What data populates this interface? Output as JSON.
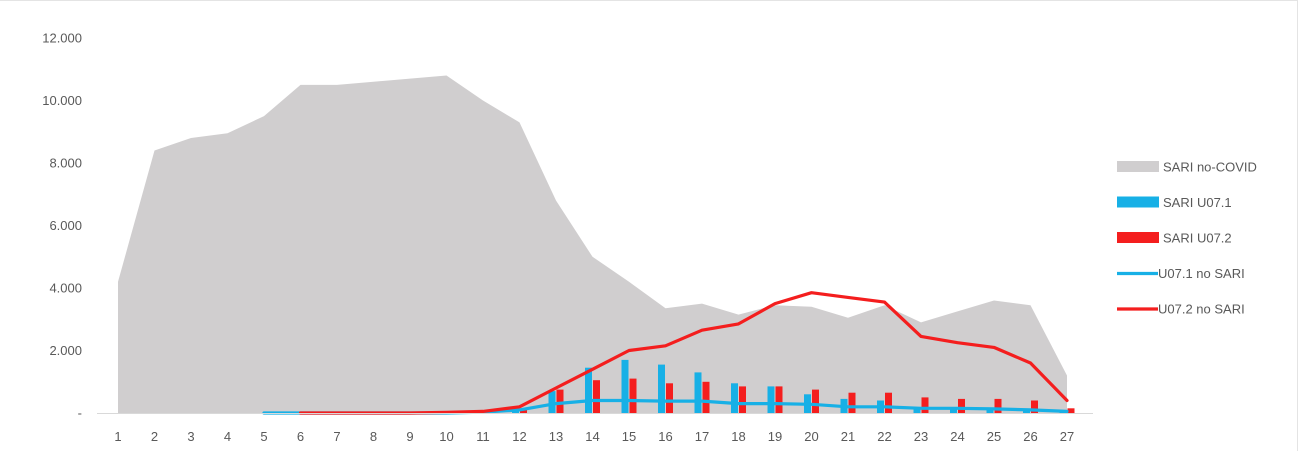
{
  "chart_data": {
    "type": "area",
    "title": "",
    "xlabel": "",
    "ylabel": "",
    "ylim": [
      0,
      12000
    ],
    "yticks": [
      {
        "value": 0,
        "label": "-"
      },
      {
        "value": 2000,
        "label": "2.000"
      },
      {
        "value": 4000,
        "label": "4.000"
      },
      {
        "value": 6000,
        "label": "6.000"
      },
      {
        "value": 8000,
        "label": "8.000"
      },
      {
        "value": 10000,
        "label": "10.000"
      },
      {
        "value": 12000,
        "label": "12.000"
      }
    ],
    "categories": [
      "1",
      "2",
      "3",
      "4",
      "5",
      "6",
      "7",
      "8",
      "9",
      "10",
      "11",
      "12",
      "13",
      "14",
      "15",
      "16",
      "17",
      "18",
      "19",
      "20",
      "21",
      "22",
      "23",
      "24",
      "25",
      "26",
      "27"
    ],
    "grid": false,
    "legend_position": "right",
    "series": [
      {
        "name": "SARI no-COVID",
        "kind": "area",
        "color": "#d0cecf",
        "values": [
          4200,
          8400,
          8800,
          8950,
          9500,
          10500,
          10500,
          10600,
          10700,
          10800,
          10000,
          9300,
          6800,
          5000,
          4200,
          3350,
          3500,
          3150,
          3450,
          3400,
          3050,
          3450,
          2900,
          3250,
          3600,
          3450,
          1200
        ]
      },
      {
        "name": "SARI U07.1",
        "kind": "bar",
        "color": "#17b0e6",
        "values": [
          null,
          null,
          null,
          null,
          null,
          null,
          null,
          null,
          null,
          null,
          null,
          100,
          700,
          1450,
          1700,
          1550,
          1300,
          950,
          850,
          600,
          450,
          400,
          150,
          150,
          100,
          100,
          50
        ]
      },
      {
        "name": "SARI U07.2",
        "kind": "bar",
        "color": "#f41e1e",
        "values": [
          null,
          null,
          null,
          null,
          null,
          null,
          null,
          null,
          null,
          null,
          null,
          100,
          750,
          1050,
          1100,
          950,
          1000,
          850,
          850,
          750,
          650,
          650,
          500,
          450,
          450,
          400,
          150
        ]
      },
      {
        "name": "U07.1 no SARI",
        "kind": "line",
        "color": "#17b0e6",
        "values": [
          null,
          null,
          null,
          null,
          0,
          0,
          0,
          0,
          0,
          0,
          30,
          100,
          300,
          400,
          400,
          380,
          380,
          300,
          300,
          280,
          200,
          200,
          150,
          150,
          130,
          100,
          50
        ]
      },
      {
        "name": "U07.2 no SARI",
        "kind": "line",
        "color": "#f41e1e",
        "values": [
          null,
          null,
          null,
          null,
          null,
          0,
          0,
          0,
          0,
          20,
          50,
          200,
          800,
          1400,
          2000,
          2150,
          2650,
          2850,
          3500,
          3850,
          3700,
          3550,
          2450,
          2250,
          2100,
          1600,
          400
        ]
      }
    ]
  }
}
